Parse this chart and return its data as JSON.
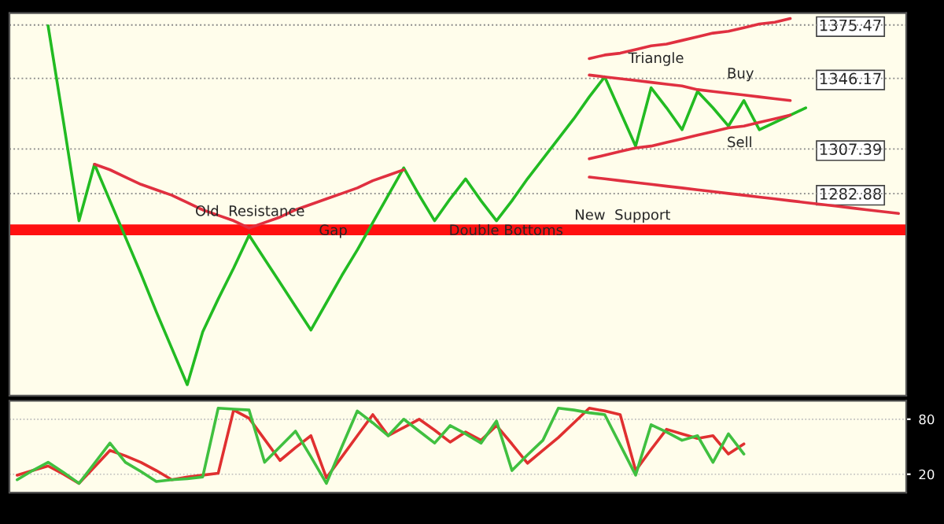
{
  "chart_data": [
    {
      "type": "line",
      "categories": [
        null,
        null,
        null,
        null,
        null,
        null,
        null,
        null,
        null,
        null,
        null,
        null,
        null,
        null,
        null,
        null,
        null,
        null,
        null,
        null,
        null,
        null,
        null,
        null,
        null,
        null,
        null,
        null,
        null,
        null,
        null,
        null,
        null,
        null,
        null,
        null,
        null,
        null,
        null,
        null,
        null,
        null,
        null,
        null,
        null,
        null,
        null,
        null,
        null,
        null,
        null,
        null,
        null,
        null,
        null,
        null,
        null,
        null
      ],
      "series": [
        {
          "color": "#22bb22",
          "values": [
            null,
            null,
            1375,
            1322,
            1268,
            1299,
            1279,
            1259,
            1239,
            1218,
            1198,
            1178,
            1207,
            1225,
            1242,
            1260,
            1247,
            1234,
            1221,
            1208,
            1223,
            1238,
            1252,
            1267,
            1282,
            1297,
            1282,
            1268,
            1280,
            1291,
            1279,
            1268,
            1279,
            1291,
            1302,
            1313,
            1324,
            1336,
            1347,
            1328,
            1309,
            1341,
            1330,
            1318,
            1339,
            1330,
            1320,
            1334,
            1318,
            1322,
            1326,
            1330,
            null,
            null,
            null,
            null,
            null,
            null
          ]
        },
        {
          "color": "#e03040",
          "values": [
            null,
            null,
            null,
            null,
            null,
            1299,
            1296,
            1292,
            1288,
            1285,
            1282,
            1278,
            1274,
            1271,
            1268,
            1264,
            1267,
            1270,
            1274,
            1277,
            1280,
            1283,
            1286,
            1290,
            1293,
            1296,
            null,
            null,
            null,
            null,
            null,
            null,
            null,
            null,
            null,
            null,
            null,
            null,
            null,
            null,
            null,
            null,
            null,
            null,
            null,
            null,
            null,
            null,
            null,
            null,
            null,
            null,
            null,
            null,
            null,
            null,
            null,
            null
          ]
        },
        {
          "color": "#e03040",
          "values": [
            null,
            null,
            null,
            null,
            null,
            null,
            null,
            null,
            null,
            null,
            null,
            null,
            null,
            null,
            null,
            null,
            null,
            null,
            null,
            null,
            null,
            null,
            null,
            null,
            null,
            null,
            null,
            null,
            null,
            null,
            null,
            null,
            null,
            null,
            null,
            null,
            null,
            1357,
            1359,
            1360,
            1362,
            1364,
            1365,
            1367,
            1369,
            1371,
            1372,
            1374,
            1376,
            1377,
            1379,
            null,
            null,
            null,
            null,
            null,
            null,
            null
          ]
        },
        {
          "color": "#e03040",
          "values": [
            null,
            null,
            null,
            null,
            null,
            null,
            null,
            null,
            null,
            null,
            null,
            null,
            null,
            null,
            null,
            null,
            null,
            null,
            null,
            null,
            null,
            null,
            null,
            null,
            null,
            null,
            null,
            null,
            null,
            null,
            null,
            null,
            null,
            null,
            null,
            null,
            null,
            1292,
            1291,
            1290,
            1289,
            1288,
            1287,
            1286,
            1285,
            1284,
            1283,
            1282,
            1281,
            1280,
            1279,
            1278,
            1277,
            1276,
            1275,
            1274,
            1273,
            1272
          ]
        },
        {
          "color": "#e03040",
          "values": [
            null,
            null,
            null,
            null,
            null,
            null,
            null,
            null,
            null,
            null,
            null,
            null,
            null,
            null,
            null,
            null,
            null,
            null,
            null,
            null,
            null,
            null,
            null,
            null,
            null,
            null,
            null,
            null,
            null,
            null,
            null,
            null,
            null,
            null,
            null,
            null,
            null,
            1348,
            1347,
            1346,
            1345,
            1344,
            1343,
            1342,
            1340,
            1339,
            1338,
            1337,
            1336,
            1335,
            1334,
            null,
            null,
            null,
            null,
            null,
            null,
            null
          ]
        },
        {
          "color": "#e03040",
          "values": [
            null,
            null,
            null,
            null,
            null,
            null,
            null,
            null,
            null,
            null,
            null,
            null,
            null,
            null,
            null,
            null,
            null,
            null,
            null,
            null,
            null,
            null,
            null,
            null,
            null,
            null,
            null,
            null,
            null,
            null,
            null,
            null,
            null,
            null,
            null,
            null,
            null,
            1302,
            1304,
            1306,
            1308,
            1309,
            1311,
            1313,
            1315,
            1317,
            1319,
            1320,
            1322,
            1324,
            1326,
            null,
            null,
            null,
            null,
            null,
            null,
            null
          ]
        }
      ],
      "ylim": [
        1172,
        1382
      ],
      "yticks": [
        1282.88,
        1307.39,
        1346.17,
        1375.47
      ],
      "tick_labels": "y",
      "grid": false,
      "legend": false,
      "ref_lines": [
        {
          "axis": "y",
          "value": 1375.47,
          "color": "#888888",
          "line_style": "dotted"
        },
        {
          "axis": "y",
          "value": 1346.17,
          "color": "#888888",
          "line_style": "dotted"
        },
        {
          "axis": "y",
          "value": 1307.39,
          "color": "#888888",
          "line_style": "dotted"
        },
        {
          "axis": "y",
          "value": 1282.88,
          "color": "#888888",
          "line_style": "dotted"
        }
      ],
      "bands": [
        {
          "axis": "y",
          "from": 1260,
          "to": 1266,
          "color": "#ff1010"
        }
      ],
      "annotations": [
        "Old  Resistance",
        "Gap",
        "Double Bottoms",
        "New  Support",
        "Triangle",
        "Buy",
        "Sell"
      ]
    },
    {
      "type": "line",
      "categories": [
        null,
        null,
        null,
        null,
        null,
        null,
        null,
        null,
        null,
        null,
        null,
        null,
        null,
        null,
        null,
        null,
        null,
        null,
        null,
        null,
        null,
        null,
        null,
        null,
        null,
        null,
        null,
        null,
        null,
        null,
        null,
        null,
        null,
        null,
        null,
        null,
        null,
        null,
        null,
        null,
        null,
        null,
        null,
        null,
        null,
        null,
        null,
        null,
        null,
        null,
        null,
        null,
        null,
        null,
        null,
        null,
        null,
        null
      ],
      "ylim": [
        0,
        100
      ],
      "yticks": [
        20,
        80
      ],
      "tick_labels": "y",
      "grid": "y",
      "legend": false,
      "series": [
        {
          "color": "#e03030",
          "values": [
            19,
            24,
            29,
            20,
            10,
            28,
            46,
            40,
            33,
            24,
            14,
            17,
            19,
            21,
            90,
            81,
            58,
            35,
            49,
            62,
            16,
            39,
            62,
            85,
            62,
            71,
            80,
            68,
            55,
            66,
            57,
            73,
            53,
            32,
            46,
            60,
            76,
            92,
            89,
            85,
            24,
            47,
            69,
            64,
            59,
            62,
            42,
            53,
            null,
            null,
            null,
            null,
            null,
            null,
            null,
            null,
            null,
            null
          ]
        },
        {
          "color": "#40c040",
          "values": [
            14,
            24,
            33,
            22,
            10,
            32,
            54,
            33,
            23,
            12,
            14,
            15,
            17,
            92,
            91,
            90,
            33,
            50,
            67,
            39,
            10,
            50,
            89,
            76,
            62,
            80,
            67,
            54,
            73,
            64,
            54,
            78,
            24,
            41,
            57,
            92,
            90,
            87,
            85,
            52,
            19,
            74,
            66,
            57,
            62,
            33,
            64,
            42,
            null,
            null,
            null,
            null,
            null,
            null,
            null,
            null,
            null,
            null
          ]
        }
      ]
    }
  ]
}
